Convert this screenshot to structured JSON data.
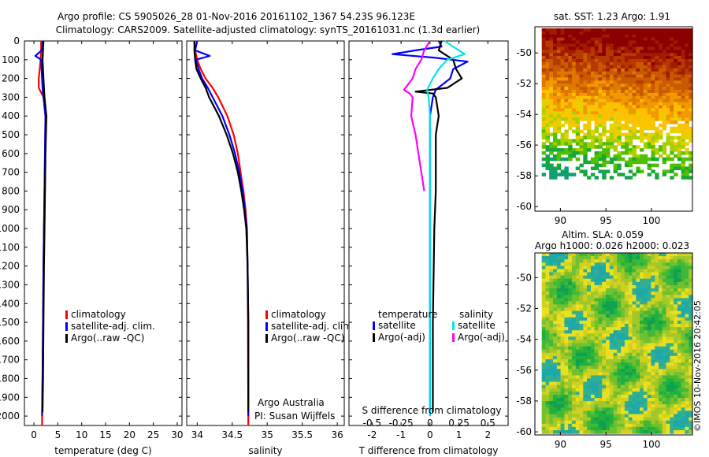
{
  "title": {
    "line1": "Argo profile: CS 5905026_28 01-Nov-2016 20161102_1367 54.23S 96.123E",
    "line2": "Climatology: CARS2009. Satellite-adjusted climatology: synTS_20161031.nc (1.3d earlier)"
  },
  "colors": {
    "climatology": "#ff0000",
    "satellite": "#0000ff",
    "argo": "#000000",
    "sat_cyan": "#00e5e5",
    "argo_salinity": "#ff00ff"
  },
  "chart_data": [
    {
      "id": "temperature",
      "type": "line",
      "xlabel": "temperature (deg C)",
      "ylabel": "",
      "xlim": [
        -2,
        31
      ],
      "ylim": [
        0,
        2050
      ],
      "y_inverted": true,
      "xticks": [
        0,
        5,
        10,
        15,
        20,
        25,
        30
      ],
      "xtick_labels": [
        "0",
        "5",
        "10",
        "15",
        "20",
        "25",
        "30"
      ],
      "yticks": [
        0,
        100,
        200,
        300,
        400,
        500,
        600,
        700,
        800,
        900,
        1000,
        1100,
        1200,
        1300,
        1400,
        1500,
        1600,
        1700,
        1800,
        1900,
        2000
      ],
      "ytick_labels": [
        "0",
        "100",
        "200",
        "300",
        "400",
        "500",
        "600",
        "700",
        "800",
        "900",
        "1000",
        "1100",
        "1200",
        "1300",
        "1400",
        "1500",
        "1600",
        "1700",
        "1800",
        "1900",
        "2000"
      ],
      "legend": [
        "climatology",
        "satellite-adj. clim.",
        "Argo(..raw -QC)"
      ],
      "legend_location": "lower-center",
      "series": [
        {
          "name": "climatology",
          "color": "#ff0000",
          "depth": [
            0,
            50,
            100,
            150,
            200,
            250,
            300,
            400,
            600,
            800,
            1000,
            1200,
            1500,
            1800,
            2050
          ],
          "values": [
            1.5,
            1.5,
            1.4,
            1.2,
            1.0,
            1.0,
            2.0,
            2.4,
            2.3,
            2.2,
            2.1,
            2.0,
            1.9,
            1.8,
            1.7
          ]
        },
        {
          "name": "satellite-adj. clim.",
          "color": "#0000ff",
          "depth": [
            0,
            50,
            80,
            100,
            150,
            200,
            250,
            300,
            400,
            600,
            800,
            1000,
            1200,
            1500,
            1800,
            2000
          ],
          "values": [
            1.9,
            1.6,
            0.3,
            1.5,
            1.6,
            1.7,
            1.8,
            2.0,
            2.4,
            2.3,
            2.2,
            2.1,
            2.0,
            1.9,
            1.8,
            1.7
          ]
        },
        {
          "name": "Argo(..raw -QC)",
          "color": "#000000",
          "depth": [
            0,
            50,
            100,
            150,
            200,
            250,
            300,
            400,
            500,
            600,
            800,
            1000,
            1200,
            1500,
            1800,
            1980
          ],
          "values": [
            2.0,
            1.9,
            1.8,
            1.9,
            2.0,
            2.1,
            2.2,
            2.6,
            2.5,
            2.4,
            2.3,
            2.2,
            2.1,
            2.0,
            1.9,
            1.8
          ]
        }
      ]
    },
    {
      "id": "salinity",
      "type": "line",
      "xlabel": "salinity",
      "xlim": [
        33.85,
        36.1
      ],
      "ylim": [
        0,
        2050
      ],
      "y_inverted": true,
      "xticks": [
        34,
        34.5,
        35,
        35.5,
        36
      ],
      "xtick_labels": [
        "34",
        "34.5",
        "35",
        "35.5",
        "36"
      ],
      "legend": [
        "climatology",
        "satellite-adj. clim.",
        "Argo(..raw -QC)"
      ],
      "legend_location": "lower-right",
      "annotations": [
        "Argo Australia",
        "PI: Susan Wijffels"
      ],
      "series": [
        {
          "name": "climatology",
          "color": "#ff0000",
          "depth": [
            0,
            50,
            100,
            150,
            200,
            250,
            300,
            400,
            500,
            600,
            700,
            800,
            900,
            1000,
            1200,
            1500,
            2050
          ],
          "values": [
            33.96,
            33.97,
            34.0,
            34.05,
            34.12,
            34.22,
            34.3,
            34.43,
            34.52,
            34.58,
            34.62,
            34.66,
            34.69,
            34.71,
            34.72,
            34.725,
            34.73
          ]
        },
        {
          "name": "satellite-adj. clim.",
          "color": "#0000ff",
          "depth": [
            0,
            50,
            80,
            100,
            150,
            200,
            250,
            300,
            400,
            500,
            600,
            700,
            800,
            900,
            1000,
            1200,
            1500,
            2000
          ],
          "values": [
            34.0,
            33.97,
            34.18,
            33.98,
            34.02,
            34.07,
            34.15,
            34.22,
            34.36,
            34.46,
            34.54,
            34.6,
            34.65,
            34.68,
            34.71,
            34.72,
            34.73,
            34.73
          ]
        },
        {
          "name": "Argo(..raw -QC)",
          "color": "#000000",
          "depth": [
            0,
            50,
            100,
            150,
            200,
            250,
            300,
            350,
            400,
            500,
            600,
            700,
            800,
            900,
            1000,
            1200,
            1500,
            1980
          ],
          "values": [
            33.96,
            33.96,
            33.97,
            33.99,
            34.05,
            34.12,
            34.17,
            34.24,
            34.31,
            34.42,
            34.51,
            34.58,
            34.63,
            34.67,
            34.7,
            34.72,
            34.73,
            34.73
          ]
        }
      ]
    },
    {
      "id": "difference",
      "type": "line",
      "xlabel": "T difference from climatology",
      "xlabel_top": "S difference from climatology",
      "xlim": [
        -2.8,
        2.7
      ],
      "ylim": [
        0,
        2050
      ],
      "y_inverted": true,
      "xticks": [
        -2,
        -1,
        0,
        1,
        2
      ],
      "xtick_labels": [
        "-2",
        "-1",
        "0",
        "1",
        "2"
      ],
      "top_xtick_labels": [
        "-0.5",
        "-0.25",
        "0",
        "0.25",
        "0.5"
      ],
      "top_xtick_positions": [
        -2,
        -1,
        0,
        1,
        2
      ],
      "legend_titles": [
        "temperature",
        "salinity"
      ],
      "legend": [
        "satellite",
        "Argo(-adj)",
        "satellite",
        "Argo(-adj)"
      ],
      "series": [
        {
          "name": "temperature satellite",
          "color": "#0000ff",
          "depth": [
            0,
            30,
            50,
            70,
            90,
            110,
            150,
            200,
            260,
            300,
            400,
            600,
            1000,
            1500,
            2000
          ],
          "values": [
            0.3,
            0.4,
            -0.5,
            -1.3,
            0.2,
            1.3,
            0.8,
            0.7,
            0.2,
            0.1,
            0.0,
            0.0,
            0.0,
            0.0,
            0.0
          ]
        },
        {
          "name": "temperature Argo(-adj)",
          "color": "#000000",
          "depth": [
            0,
            50,
            100,
            150,
            200,
            250,
            270,
            280,
            300,
            400,
            500,
            600,
            800,
            1000,
            1500,
            1980
          ],
          "values": [
            0.4,
            0.3,
            0.8,
            0.9,
            1.1,
            0.6,
            -0.5,
            0.1,
            0.2,
            0.3,
            0.2,
            0.2,
            0.2,
            0.15,
            0.1,
            0.1
          ]
        },
        {
          "name": "salinity satellite",
          "color": "#00e5e5",
          "depth": [
            0,
            50,
            70,
            100,
            150,
            200,
            260,
            300,
            400,
            600,
            1000,
            1500,
            2000
          ],
          "values": [
            0.5,
            1.0,
            1.2,
            0.6,
            0.3,
            0.1,
            -0.1,
            -0.05,
            0.0,
            0.0,
            0.0,
            0.0,
            0.0
          ]
        },
        {
          "name": "salinity Argo(-adj)",
          "color": "#ff00ff",
          "depth": [
            0,
            50,
            100,
            150,
            200,
            240,
            260,
            280,
            300,
            400,
            500,
            600,
            700,
            800
          ],
          "values": [
            0.0,
            -0.2,
            -0.3,
            -0.5,
            -0.6,
            -0.8,
            -0.9,
            -0.7,
            -0.6,
            -0.65,
            -0.5,
            -0.4,
            -0.3,
            -0.2
          ]
        }
      ]
    },
    {
      "id": "sst-map",
      "type": "heatmap",
      "title": "sat. SST: 1.23 Argo: 1.91",
      "xticks": [
        90,
        95,
        100
      ],
      "xtick_labels": [
        "90",
        "95",
        "100"
      ],
      "yticks": [
        -50,
        -52,
        -54,
        -56,
        -58,
        -60
      ],
      "ytick_labels": [
        "-50",
        "-52",
        "-54",
        "-56",
        "-58",
        "-60"
      ],
      "xlim": [
        87.2,
        104.5
      ],
      "ylim": [
        -60.3,
        -48.3
      ]
    },
    {
      "id": "sla-map",
      "type": "heatmap",
      "title_line1": "Altim. SLA: 0.059",
      "title_line2": "Argo h1000: 0.026 h2000: 0.023",
      "xticks": [
        90,
        95,
        100
      ],
      "xtick_labels": [
        "90",
        "95",
        "100"
      ],
      "yticks": [
        -50,
        -52,
        -54,
        -56,
        -58,
        -60
      ],
      "ytick_labels": [
        "-50",
        "-52",
        "-54",
        "-56",
        "-58",
        "-60"
      ],
      "xlim": [
        87.2,
        104.5
      ],
      "ylim": [
        -60.2,
        -48.4
      ]
    }
  ],
  "stamp": "©IMOS 10-Nov-2016 20:42:05"
}
